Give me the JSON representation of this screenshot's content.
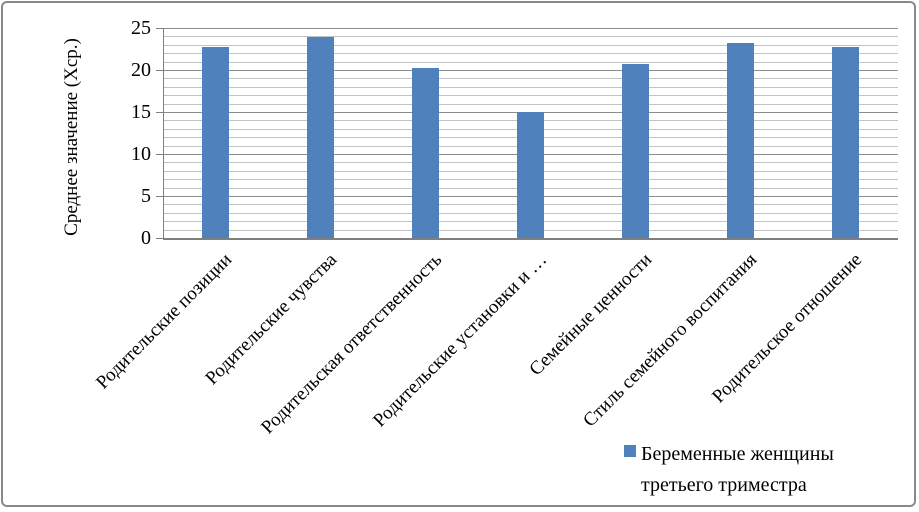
{
  "chart_data": {
    "type": "bar",
    "title": "",
    "xlabel": "",
    "ylabel": "Среднее значение (Хср.)",
    "categories": [
      "Родительские позиции",
      "Родительские чувства",
      "Родительская ответственность",
      "Родительские установки и …",
      "Семейные ценности",
      "Стиль семейного воспитания",
      "Родительское отношение"
    ],
    "series": [
      {
        "name": "Беременные женщины третьего триместра",
        "values": [
          22.7,
          23.9,
          20.2,
          15,
          20.7,
          23.2,
          22.7
        ]
      }
    ],
    "ylim": [
      0,
      25
    ],
    "y_major_ticks": [
      0,
      5,
      10,
      15,
      20,
      25
    ],
    "y_minor_unit": 1,
    "grid": "horizontal, major and minor lines on",
    "legend_position": "bottom-right",
    "x_label_rotation_deg": 45,
    "colors": {
      "bar_fill": "#4F81BD",
      "major_gridline": "#8C8C8C",
      "minor_gridline": "#C3C3C3",
      "axis_line": "#7F7F7F",
      "text": "#000000"
    }
  }
}
